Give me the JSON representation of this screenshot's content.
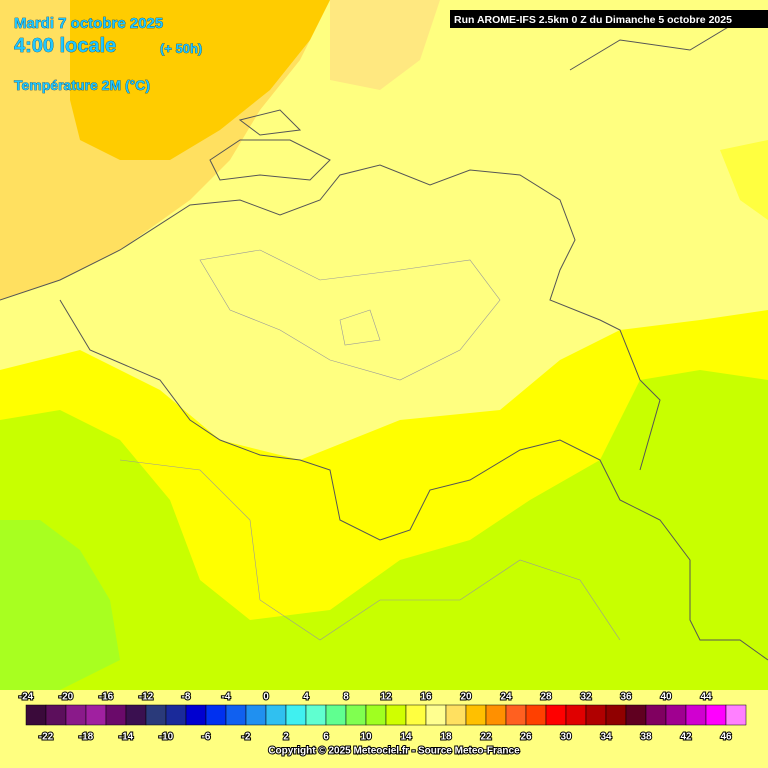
{
  "header": {
    "date": "Mardi 7 octobre 2025",
    "time": "4:00 locale",
    "lead": "(+ 50h)",
    "parameter": "Température 2M (°C)",
    "run": "Run AROME-IFS 2.5km 0 Z du Dimanche 5 octobre 2025"
  },
  "legend": {
    "steps": [
      {
        "value": -24,
        "color": "#3a0a3a"
      },
      {
        "value": -22,
        "color": "#5c0f5c"
      },
      {
        "value": -20,
        "color": "#8a1a8a"
      },
      {
        "value": -18,
        "color": "#a020a0"
      },
      {
        "value": -16,
        "color": "#6a0a6a"
      },
      {
        "value": -14,
        "color": "#3a1050"
      },
      {
        "value": -12,
        "color": "#2a3a7a"
      },
      {
        "value": -10,
        "color": "#1a2a9a"
      },
      {
        "value": -8,
        "color": "#0000d0"
      },
      {
        "value": -6,
        "color": "#0030f0"
      },
      {
        "value": -4,
        "color": "#1060f0"
      },
      {
        "value": -2,
        "color": "#2090f0"
      },
      {
        "value": 0,
        "color": "#30c0f0"
      },
      {
        "value": 2,
        "color": "#40f0f0"
      },
      {
        "value": 4,
        "color": "#60ffd0"
      },
      {
        "value": 6,
        "color": "#60ff90"
      },
      {
        "value": 8,
        "color": "#80ff50"
      },
      {
        "value": 10,
        "color": "#a0ff20"
      },
      {
        "value": 12,
        "color": "#d0ff00"
      },
      {
        "value": 14,
        "color": "#ffff40"
      },
      {
        "value": 16,
        "color": "#ffff90"
      },
      {
        "value": 18,
        "color": "#ffe060"
      },
      {
        "value": 20,
        "color": "#ffc000"
      },
      {
        "value": 22,
        "color": "#ff9000"
      },
      {
        "value": 24,
        "color": "#ff6020"
      },
      {
        "value": 26,
        "color": "#ff4000"
      },
      {
        "value": 28,
        "color": "#ff0000"
      },
      {
        "value": 30,
        "color": "#e00000"
      },
      {
        "value": 32,
        "color": "#b00000"
      },
      {
        "value": 34,
        "color": "#900000"
      },
      {
        "value": 36,
        "color": "#600020"
      },
      {
        "value": 38,
        "color": "#800060"
      },
      {
        "value": 40,
        "color": "#a00090"
      },
      {
        "value": 42,
        "color": "#d000d0"
      },
      {
        "value": 44,
        "color": "#ff00ff"
      },
      {
        "value": 46,
        "color": "#ff80ff"
      }
    ]
  },
  "footer": {
    "copyright": "Copyright © 2025 Meteociel.fr - Source Meteo-France"
  }
}
